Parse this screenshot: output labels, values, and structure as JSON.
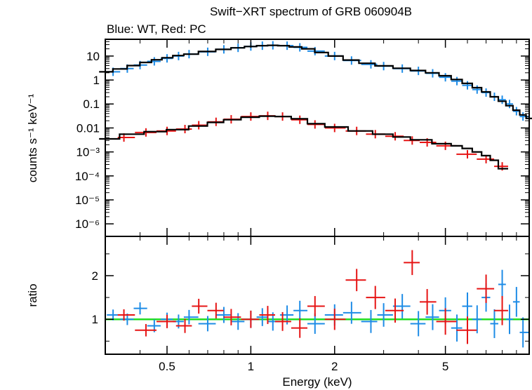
{
  "title": "Swift−XRT spectrum of GRB 060904B",
  "subtitle": "Blue: WT, Red: PC",
  "chart_data": [
    {
      "type": "scatter",
      "panel": "spectrum",
      "ylabel": "counts s⁻¹ keV⁻¹",
      "yscale": "log",
      "ylim": [
        3e-07,
        50
      ],
      "xscale": "log",
      "xlim": [
        0.3,
        10
      ],
      "ytick_labels": [
        "10",
        "1",
        "0.1",
        "0.01",
        "10⁻³",
        "10⁻⁴",
        "10⁻⁵",
        "10⁻⁶"
      ],
      "ytick_values": [
        10,
        1,
        0.1,
        0.01,
        0.001,
        0.0001,
        1e-05,
        1e-06
      ],
      "series": [
        {
          "name": "WT",
          "color": "#1e8ce6",
          "x": [
            0.32,
            0.36,
            0.4,
            0.45,
            0.5,
            0.55,
            0.6,
            0.7,
            0.8,
            0.9,
            1.0,
            1.1,
            1.2,
            1.35,
            1.5,
            1.7,
            2.0,
            2.3,
            2.7,
            3.0,
            3.5,
            4.0,
            4.5,
            5.0,
            5.5,
            6.0,
            6.5,
            7.0,
            7.5,
            8.0,
            8.5,
            9.0,
            9.5
          ],
          "y": [
            2.2,
            3.0,
            4.2,
            6.0,
            8.0,
            10,
            12,
            15,
            19,
            22,
            25,
            27,
            28,
            27,
            23,
            16,
            10,
            6.5,
            4.5,
            3.8,
            3.0,
            2.4,
            1.9,
            1.3,
            0.9,
            0.6,
            0.4,
            0.3,
            0.2,
            0.15,
            0.1,
            0.05,
            0.03
          ]
        },
        {
          "name": "PC",
          "color": "#e61414",
          "x": [
            0.35,
            0.42,
            0.5,
            0.58,
            0.65,
            0.75,
            0.85,
            1.0,
            1.15,
            1.3,
            1.5,
            1.7,
            2.0,
            2.4,
            2.8,
            3.3,
            3.8,
            4.3,
            5.0,
            6.0,
            7.0,
            8.0
          ],
          "y": [
            0.004,
            0.0065,
            0.0075,
            0.009,
            0.013,
            0.018,
            0.023,
            0.03,
            0.032,
            0.03,
            0.022,
            0.014,
            0.01,
            0.0075,
            0.0055,
            0.0045,
            0.003,
            0.0025,
            0.0018,
            0.0008,
            0.0005,
            0.00025
          ]
        }
      ],
      "models": [
        {
          "name": "WT model",
          "color": "#000000",
          "x": [
            0.3,
            0.34,
            0.38,
            0.42,
            0.46,
            0.5,
            0.55,
            0.6,
            0.7,
            0.8,
            0.9,
            1.0,
            1.1,
            1.2,
            1.3,
            1.45,
            1.6,
            1.8,
            2.0,
            2.3,
            2.6,
            3.0,
            3.5,
            4.0,
            4.5,
            5.0,
            5.5,
            6.0,
            6.5,
            7.0,
            7.5,
            8.0,
            8.5,
            9.0,
            9.5,
            10
          ],
          "y": [
            2.2,
            2.9,
            4.0,
            5.4,
            7.0,
            8.5,
            10.5,
            12,
            15.5,
            19,
            22,
            25,
            27,
            28,
            27,
            24,
            20,
            14,
            10,
            6.8,
            5.0,
            3.9,
            3.1,
            2.5,
            2.0,
            1.5,
            1.05,
            0.72,
            0.48,
            0.32,
            0.2,
            0.13,
            0.085,
            0.055,
            0.035,
            0.025
          ]
        },
        {
          "name": "PC model",
          "color": "#000000",
          "x": [
            0.3,
            0.38,
            0.45,
            0.55,
            0.65,
            0.75,
            0.85,
            1.0,
            1.15,
            1.3,
            1.5,
            1.7,
            2.0,
            2.5,
            3.0,
            3.5,
            4.0,
            5.0,
            5.5,
            6.0,
            6.5,
            7.0,
            7.5,
            8.0
          ],
          "y": [
            0.0035,
            0.0055,
            0.007,
            0.0085,
            0.012,
            0.017,
            0.022,
            0.028,
            0.031,
            0.03,
            0.024,
            0.015,
            0.011,
            0.0075,
            0.0055,
            0.0042,
            0.0032,
            0.0022,
            0.0018,
            0.0014,
            0.001,
            0.0007,
            0.00045,
            0.0002
          ]
        }
      ]
    },
    {
      "type": "scatter",
      "panel": "ratio",
      "xlabel": "Energy (keV)",
      "ylabel": "ratio",
      "xscale": "log",
      "xlim": [
        0.3,
        10
      ],
      "ylim": [
        0.2,
        2.9
      ],
      "xtick_labels": [
        "0.5",
        "1",
        "2",
        "5"
      ],
      "xtick_values": [
        0.5,
        1,
        2,
        5
      ],
      "ytick_labels": [
        "1",
        "2"
      ],
      "ytick_values": [
        1,
        2
      ],
      "reference_line": {
        "y": 1,
        "color": "#22dd22"
      },
      "series": [
        {
          "name": "WT",
          "color": "#1e8ce6",
          "x": [
            0.32,
            0.36,
            0.4,
            0.45,
            0.5,
            0.55,
            0.6,
            0.7,
            0.8,
            0.9,
            1.0,
            1.1,
            1.2,
            1.35,
            1.5,
            1.7,
            2.0,
            2.3,
            2.7,
            3.0,
            3.5,
            4.0,
            4.5,
            5.0,
            5.5,
            6.0,
            6.5,
            7.0,
            7.5,
            8.0,
            8.5,
            9.0,
            9.5
          ],
          "y": [
            1.1,
            1.0,
            1.25,
            0.85,
            1.0,
            0.95,
            1.05,
            0.9,
            1.1,
            0.95,
            1.0,
            1.05,
            0.95,
            1.1,
            1.2,
            0.9,
            1.1,
            1.15,
            0.95,
            1.1,
            1.3,
            0.9,
            1.05,
            1.2,
            0.8,
            1.3,
            1.0,
            1.5,
            0.9,
            1.8,
            1.0,
            1.4,
            0.7
          ]
        },
        {
          "name": "PC",
          "color": "#e61414",
          "x": [
            0.35,
            0.42,
            0.5,
            0.58,
            0.65,
            0.75,
            0.85,
            1.0,
            1.15,
            1.3,
            1.5,
            1.7,
            2.0,
            2.4,
            2.8,
            3.3,
            3.8,
            4.3,
            5.0,
            6.0,
            7.0,
            8.0
          ],
          "y": [
            1.1,
            0.75,
            0.95,
            0.85,
            1.3,
            1.2,
            1.05,
            1.0,
            1.1,
            0.95,
            0.8,
            1.3,
            1.0,
            1.9,
            1.5,
            1.2,
            2.3,
            1.4,
            0.95,
            0.75,
            1.7,
            1.2
          ]
        }
      ]
    }
  ]
}
